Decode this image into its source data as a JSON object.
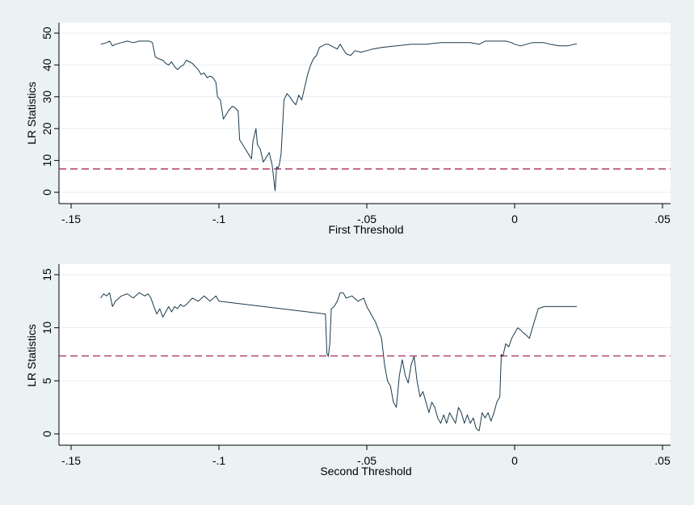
{
  "colors": {
    "background": "#eaf2f3",
    "plot_background": "#ffffff",
    "series_line": "#1a3a4d",
    "reference_line": "#a32a5a",
    "gridline": "#e4eef0",
    "axis": "#000000"
  },
  "chart_data": [
    {
      "type": "line",
      "title": "",
      "xlabel": "First Threshold",
      "ylabel": "LR Statistics",
      "xlim": [
        -0.15,
        0.05
      ],
      "ylim": [
        0,
        50
      ],
      "xticks": [
        -0.15,
        -0.1,
        -0.05,
        0,
        0.05
      ],
      "xtick_labels": [
        "-.15",
        "-.1",
        "-.05",
        "0",
        ".05"
      ],
      "yticks": [
        0,
        10,
        20,
        30,
        40,
        50
      ],
      "ytick_labels": [
        "0",
        "10",
        "20",
        "30",
        "40",
        "50"
      ],
      "grid": true,
      "reference_line": {
        "y": 7.35,
        "style": "dashed"
      },
      "series": [
        {
          "x": [
            -0.14,
            -0.138,
            -0.137,
            -0.136,
            -0.135,
            -0.133,
            -0.131,
            -0.129,
            -0.127,
            -0.125,
            -0.1235,
            -0.1225,
            -0.1215,
            -0.1205,
            -0.119,
            -0.118,
            -0.117,
            -0.116,
            -0.115,
            -0.114,
            -0.113,
            -0.112,
            -0.111,
            -0.11,
            -0.109,
            -0.107,
            -0.106,
            -0.105,
            -0.104,
            -0.103,
            -0.102,
            -0.101,
            -0.1005,
            -0.0995,
            -0.0985,
            -0.0975,
            -0.0965,
            -0.0955,
            -0.0945,
            -0.0935,
            -0.093,
            -0.092,
            -0.091,
            -0.09,
            -0.089,
            -0.0885,
            -0.0875,
            -0.087,
            -0.086,
            -0.085,
            -0.084,
            -0.083,
            -0.082,
            -0.081,
            -0.0805,
            -0.08,
            -0.0795,
            -0.079,
            -0.078,
            -0.077,
            -0.076,
            -0.075,
            -0.074,
            -0.073,
            -0.072,
            -0.071,
            -0.07,
            -0.069,
            -0.068,
            -0.067,
            -0.066,
            -0.065,
            -0.064,
            -0.063,
            -0.062,
            -0.061,
            -0.06,
            -0.059,
            -0.058,
            -0.057,
            -0.0555,
            -0.054,
            -0.052,
            -0.05,
            -0.048,
            -0.045,
            -0.04,
            -0.035,
            -0.03,
            -0.025,
            -0.02,
            -0.015,
            -0.012,
            -0.01,
            -0.008,
            -0.005,
            -0.003,
            -0.001,
            0.0,
            0.002,
            0.004,
            0.006,
            0.008,
            0.01,
            0.012,
            0.015,
            0.018,
            0.02,
            0.021
          ],
          "y": [
            46.5,
            47.0,
            47.5,
            46.0,
            46.5,
            47.0,
            47.5,
            47.0,
            47.5,
            47.5,
            47.5,
            47.0,
            42.5,
            42.0,
            41.5,
            40.5,
            40.0,
            41.0,
            39.5,
            38.5,
            39.5,
            40.0,
            41.5,
            41.0,
            40.5,
            38.5,
            37.0,
            37.5,
            36.0,
            36.5,
            36.0,
            34.5,
            30.0,
            29.0,
            23.0,
            24.5,
            26.0,
            27.0,
            26.5,
            25.5,
            16.5,
            15.0,
            13.5,
            12.0,
            10.5,
            16.0,
            20.0,
            15.0,
            13.5,
            9.5,
            11.0,
            12.5,
            8.5,
            0.5,
            8.0,
            7.5,
            9.0,
            12.0,
            29.0,
            31.0,
            30.0,
            28.5,
            27.5,
            30.5,
            29.0,
            33.0,
            37.0,
            40.0,
            42.0,
            43.0,
            45.5,
            46.0,
            46.5,
            46.5,
            46.0,
            45.5,
            45.0,
            46.5,
            45.0,
            43.5,
            43.0,
            44.5,
            44.0,
            44.5,
            45.0,
            45.5,
            46.0,
            46.5,
            46.5,
            47.0,
            47.0,
            47.0,
            46.5,
            47.5,
            47.5,
            47.5,
            47.5,
            47.0,
            46.5,
            46.0,
            46.5,
            47.0,
            47.0,
            47.0,
            46.5,
            46.0,
            46.0,
            46.5,
            46.5
          ]
        }
      ]
    },
    {
      "type": "line",
      "title": "",
      "xlabel": "Second Threshold",
      "ylabel": "LR Statistics",
      "xlim": [
        -0.15,
        0.05
      ],
      "ylim": [
        0,
        15
      ],
      "xticks": [
        -0.15,
        -0.1,
        -0.05,
        0,
        0.05
      ],
      "xtick_labels": [
        "-.15",
        "-.1",
        "-.05",
        "0",
        ".05"
      ],
      "yticks": [
        0,
        5,
        10,
        15
      ],
      "ytick_labels": [
        "0",
        "5",
        "10",
        "15"
      ],
      "grid": true,
      "reference_line": {
        "y": 7.35,
        "style": "dashed"
      },
      "series": [
        {
          "x": [
            -0.14,
            -0.139,
            -0.138,
            -0.137,
            -0.136,
            -0.135,
            -0.133,
            -0.131,
            -0.129,
            -0.127,
            -0.125,
            -0.124,
            -0.123,
            -0.122,
            -0.121,
            -0.12,
            -0.119,
            -0.118,
            -0.117,
            -0.116,
            -0.115,
            -0.114,
            -0.113,
            -0.112,
            -0.111,
            -0.11,
            -0.109,
            -0.107,
            -0.105,
            -0.103,
            -0.101,
            -0.1,
            -0.064,
            -0.0635,
            -0.063,
            -0.0625,
            -0.062,
            -0.061,
            -0.06,
            -0.059,
            -0.058,
            -0.057,
            -0.055,
            -0.053,
            -0.051,
            -0.05,
            -0.049,
            -0.047,
            -0.045,
            -0.044,
            -0.043,
            -0.042,
            -0.041,
            -0.04,
            -0.039,
            -0.038,
            -0.037,
            -0.036,
            -0.035,
            -0.034,
            -0.033,
            -0.032,
            -0.031,
            -0.03,
            -0.029,
            -0.028,
            -0.027,
            -0.026,
            -0.025,
            -0.024,
            -0.023,
            -0.022,
            -0.021,
            -0.02,
            -0.019,
            -0.018,
            -0.017,
            -0.016,
            -0.015,
            -0.014,
            -0.013,
            -0.012,
            -0.011,
            -0.01,
            -0.009,
            -0.008,
            -0.007,
            -0.006,
            -0.005,
            -0.0045,
            -0.004,
            -0.003,
            -0.002,
            -0.001,
            0.0,
            0.001,
            0.002,
            0.003,
            0.004,
            0.005,
            0.006,
            0.008,
            0.01,
            0.012,
            0.014,
            0.016,
            0.018,
            0.02,
            0.021
          ],
          "y": [
            12.8,
            13.2,
            13.0,
            13.3,
            12.0,
            12.5,
            13.0,
            13.2,
            12.8,
            13.3,
            13.0,
            13.2,
            12.8,
            12.0,
            11.3,
            11.8,
            11.0,
            11.5,
            12.0,
            11.5,
            12.0,
            11.8,
            12.2,
            12.0,
            12.2,
            12.5,
            12.8,
            12.5,
            13.0,
            12.5,
            13.0,
            12.5,
            11.3,
            7.6,
            7.3,
            8.5,
            11.8,
            12.0,
            12.5,
            13.3,
            13.3,
            12.8,
            13.0,
            12.5,
            12.8,
            12.0,
            11.5,
            10.5,
            9.0,
            6.5,
            5.0,
            4.5,
            3.0,
            2.5,
            5.5,
            7.0,
            5.5,
            4.8,
            6.5,
            7.3,
            5.0,
            3.5,
            4.0,
            3.0,
            2.0,
            3.0,
            2.5,
            1.5,
            1.0,
            1.8,
            1.0,
            2.0,
            1.5,
            1.0,
            2.5,
            2.0,
            1.0,
            1.8,
            1.0,
            1.5,
            0.5,
            0.3,
            2.0,
            1.5,
            2.0,
            1.2,
            2.0,
            3.0,
            3.5,
            7.5,
            7.3,
            8.5,
            8.2,
            9.0,
            9.5,
            10.0,
            9.8,
            9.5,
            9.3,
            9.0,
            10.0,
            11.8,
            12.0,
            12.0,
            12.0,
            12.0,
            12.0,
            12.0,
            12.0
          ]
        }
      ]
    }
  ]
}
